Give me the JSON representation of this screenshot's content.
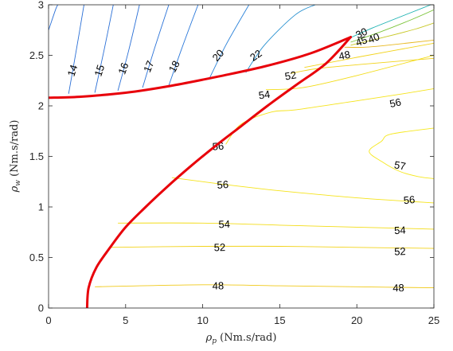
{
  "chart_data": {
    "type": "line",
    "title": "",
    "xlabel": {
      "symbol": "ρ",
      "sub": "p",
      "unit": " (Nm.s/rad)"
    },
    "ylabel": {
      "symbol": "ρ",
      "sub": "w",
      "unit": " (Nm.s/rad)"
    },
    "xlim": [
      0,
      25
    ],
    "ylim": [
      0,
      3
    ],
    "xticks": [
      "0",
      "5",
      "10",
      "15",
      "20",
      "25"
    ],
    "yticks": [
      "0",
      "0.5",
      "1",
      "1.5",
      "2",
      "2.5",
      "3"
    ],
    "grid": false,
    "contour_lines": [
      {
        "level": "14",
        "color": "#2a6fd6",
        "points": [
          [
            0.0,
            2.75
          ],
          [
            0.45,
            2.95
          ],
          [
            0.6,
            3.0
          ]
        ]
      },
      {
        "level": "14",
        "color": "#2a6fd6",
        "points": [
          [
            1.3,
            2.12
          ],
          [
            1.8,
            2.55
          ],
          [
            2.3,
            3.0
          ]
        ]
      },
      {
        "level": "15",
        "color": "#2a6fd6",
        "points": [
          [
            3.0,
            2.13
          ],
          [
            3.6,
            2.55
          ],
          [
            4.2,
            3.0
          ]
        ]
      },
      {
        "level": "16",
        "color": "#2a6fd6",
        "points": [
          [
            4.5,
            2.15
          ],
          [
            5.2,
            2.55
          ],
          [
            5.9,
            3.0
          ]
        ]
      },
      {
        "level": "17",
        "color": "#2a72d8",
        "points": [
          [
            6.1,
            2.18
          ],
          [
            6.9,
            2.58
          ],
          [
            7.8,
            3.0
          ]
        ]
      },
      {
        "level": "18",
        "color": "#2a78da",
        "points": [
          [
            7.8,
            2.2
          ],
          [
            8.6,
            2.55
          ],
          [
            9.7,
            3.0
          ]
        ]
      },
      {
        "level": "20",
        "color": "#2a82d9",
        "points": [
          [
            10.4,
            2.26
          ],
          [
            11.5,
            2.6
          ],
          [
            13.0,
            3.0
          ]
        ]
      },
      {
        "level": "22",
        "color": "#2790d0",
        "points": [
          [
            12.8,
            2.33
          ],
          [
            14.0,
            2.6
          ],
          [
            16.0,
            2.9
          ],
          [
            17.3,
            3.0
          ]
        ]
      },
      {
        "level": "30",
        "color": "#17b0b0",
        "points": [
          [
            19.4,
            2.66
          ],
          [
            21.0,
            2.77
          ],
          [
            24.8,
            3.0
          ]
        ]
      },
      {
        "level": "40",
        "color": "#7cc43a",
        "points": [
          [
            19.6,
            2.63
          ],
          [
            21.5,
            2.73
          ],
          [
            23.5,
            2.85
          ],
          [
            25.0,
            2.95
          ]
        ]
      },
      {
        "level": "45",
        "color": "#c8c828",
        "points": [
          [
            19.6,
            2.6
          ],
          [
            21.8,
            2.68
          ],
          [
            23.8,
            2.76
          ],
          [
            25.0,
            2.82
          ]
        ]
      },
      {
        "level": "48",
        "color": "#e8b820",
        "points": [
          [
            19.2,
            2.58
          ],
          [
            20.5,
            2.58
          ],
          [
            22.0,
            2.6
          ],
          [
            25.0,
            2.65
          ]
        ]
      },
      {
        "level": "52",
        "color": "#f2d31b",
        "points": [
          [
            15.7,
            2.32
          ],
          [
            17.5,
            2.37
          ],
          [
            21.0,
            2.42
          ],
          [
            25.0,
            2.47
          ]
        ]
      },
      {
        "level": "52",
        "color": "#f2d31b",
        "points": [
          [
            16.6,
            2.38
          ],
          [
            20.0,
            2.48
          ],
          [
            25.0,
            2.62
          ]
        ]
      },
      {
        "level": "54",
        "color": "#f3dc18",
        "points": [
          [
            14.1,
            2.16
          ],
          [
            16.5,
            2.18
          ],
          [
            20.0,
            2.3
          ],
          [
            25.0,
            2.5
          ]
        ]
      },
      {
        "level": "56",
        "color": "#f5e31b",
        "points": [
          [
            11.5,
            1.62
          ],
          [
            12.5,
            1.82
          ],
          [
            14.5,
            1.94
          ],
          [
            16.0,
            1.96
          ],
          [
            20.0,
            2.05
          ],
          [
            23.0,
            2.12
          ],
          [
            25.0,
            2.17
          ]
        ]
      },
      {
        "level": "57",
        "color": "#f6e81f",
        "points": [
          [
            25.0,
            1.78
          ],
          [
            22.2,
            1.72
          ],
          [
            21.6,
            1.65
          ],
          [
            20.8,
            1.55
          ],
          [
            21.6,
            1.45
          ],
          [
            22.8,
            1.35
          ],
          [
            24.0,
            1.3
          ],
          [
            25.0,
            1.28
          ]
        ]
      },
      {
        "level": "56",
        "color": "#f5e31b",
        "points": [
          [
            8.0,
            1.29
          ],
          [
            11.0,
            1.23
          ],
          [
            15.0,
            1.16
          ],
          [
            20.0,
            1.09
          ],
          [
            25.0,
            1.04
          ]
        ]
      },
      {
        "level": "54",
        "color": "#f3dc18",
        "points": [
          [
            4.5,
            0.84
          ],
          [
            10.0,
            0.84
          ],
          [
            15.0,
            0.82
          ],
          [
            20.0,
            0.8
          ],
          [
            25.0,
            0.78
          ]
        ]
      },
      {
        "level": "52",
        "color": "#f2d31b",
        "points": [
          [
            3.9,
            0.6
          ],
          [
            10.0,
            0.61
          ],
          [
            15.0,
            0.61
          ],
          [
            20.0,
            0.6
          ],
          [
            25.0,
            0.59
          ]
        ]
      },
      {
        "level": "48",
        "color": "#f0c919",
        "points": [
          [
            3.0,
            0.21
          ],
          [
            10.0,
            0.23
          ],
          [
            15.0,
            0.22
          ],
          [
            20.0,
            0.21
          ],
          [
            25.0,
            0.2
          ]
        ]
      }
    ],
    "contour_labels": [
      {
        "text": "14",
        "x": 1.55,
        "y": 2.35,
        "angle": -72
      },
      {
        "text": "15",
        "x": 3.3,
        "y": 2.35,
        "angle": -72
      },
      {
        "text": "16",
        "x": 4.85,
        "y": 2.37,
        "angle": -70
      },
      {
        "text": "17",
        "x": 6.5,
        "y": 2.39,
        "angle": -67
      },
      {
        "text": "18",
        "x": 8.15,
        "y": 2.39,
        "angle": -62
      },
      {
        "text": "20",
        "x": 11.0,
        "y": 2.5,
        "angle": -48
      },
      {
        "text": "22",
        "x": 13.45,
        "y": 2.5,
        "angle": -35
      },
      {
        "text": "30",
        "x": 20.3,
        "y": 2.72,
        "angle": -25
      },
      {
        "text": "40",
        "x": 21.1,
        "y": 2.67,
        "angle": -22
      },
      {
        "text": "45",
        "x": 20.3,
        "y": 2.64,
        "angle": -20
      },
      {
        "text": "48",
        "x": 19.2,
        "y": 2.5,
        "angle": -12
      },
      {
        "text": "52",
        "x": 15.7,
        "y": 2.3,
        "angle": -10
      },
      {
        "text": "54",
        "x": 14.0,
        "y": 2.11,
        "angle": -8
      },
      {
        "text": "56",
        "x": 22.5,
        "y": 2.03,
        "angle": -12
      },
      {
        "text": "56",
        "x": 11.0,
        "y": 1.6,
        "angle": -4
      },
      {
        "text": "57",
        "x": 22.8,
        "y": 1.41,
        "angle": 10
      },
      {
        "text": "56",
        "x": 11.3,
        "y": 1.22,
        "angle": -4
      },
      {
        "text": "56",
        "x": 23.4,
        "y": 1.07,
        "angle": -5
      },
      {
        "text": "54",
        "x": 11.4,
        "y": 0.83,
        "angle": -2
      },
      {
        "text": "54",
        "x": 22.8,
        "y": 0.77,
        "angle": -3
      },
      {
        "text": "52",
        "x": 11.1,
        "y": 0.6,
        "angle": -1
      },
      {
        "text": "52",
        "x": 22.8,
        "y": 0.56,
        "angle": -2
      },
      {
        "text": "48",
        "x": 11.0,
        "y": 0.22,
        "angle": -1
      },
      {
        "text": "48",
        "x": 22.7,
        "y": 0.2,
        "angle": -1
      }
    ],
    "boundary_curves": [
      {
        "color": "#e8000a",
        "points": [
          [
            0.0,
            2.08
          ],
          [
            2.0,
            2.09
          ],
          [
            5.0,
            2.13
          ],
          [
            8.0,
            2.2
          ],
          [
            11.0,
            2.29
          ],
          [
            14.0,
            2.39
          ],
          [
            17.0,
            2.52
          ],
          [
            19.6,
            2.68
          ]
        ]
      },
      {
        "color": "#e8000a",
        "points": [
          [
            2.5,
            0.0
          ],
          [
            2.6,
            0.2
          ],
          [
            3.1,
            0.4
          ],
          [
            4.0,
            0.6
          ],
          [
            5.0,
            0.8
          ],
          [
            6.3,
            1.0
          ],
          [
            7.7,
            1.2
          ],
          [
            9.2,
            1.4
          ],
          [
            10.8,
            1.6
          ],
          [
            12.5,
            1.8
          ],
          [
            14.2,
            2.0
          ],
          [
            16.0,
            2.2
          ],
          [
            18.0,
            2.42
          ],
          [
            19.6,
            2.68
          ]
        ]
      }
    ]
  }
}
